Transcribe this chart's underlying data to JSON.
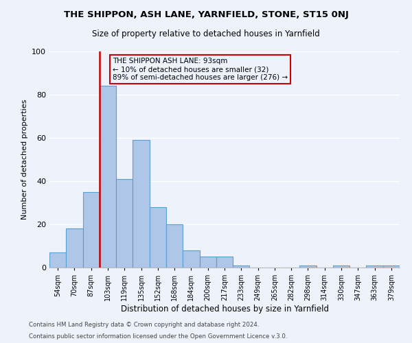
{
  "title": "THE SHIPPON, ASH LANE, YARNFIELD, STONE, ST15 0NJ",
  "subtitle": "Size of property relative to detached houses in Yarnfield",
  "xlabel": "Distribution of detached houses by size in Yarnfield",
  "ylabel": "Number of detached properties",
  "bin_labels": [
    "54sqm",
    "70sqm",
    "87sqm",
    "103sqm",
    "119sqm",
    "135sqm",
    "152sqm",
    "168sqm",
    "184sqm",
    "200sqm",
    "217sqm",
    "233sqm",
    "249sqm",
    "265sqm",
    "282sqm",
    "298sqm",
    "314sqm",
    "330sqm",
    "347sqm",
    "363sqm",
    "379sqm"
  ],
  "bar_heights": [
    7,
    18,
    35,
    84,
    41,
    59,
    28,
    20,
    8,
    5,
    5,
    1,
    0,
    0,
    0,
    1,
    0,
    1,
    0,
    1,
    1
  ],
  "bar_color": "#aec6e8",
  "bar_edge_color": "#5a9fd4",
  "vline_color": "#cc0000",
  "ylim": [
    0,
    100
  ],
  "annotation_title": "THE SHIPPON ASH LANE: 93sqm",
  "annotation_line1": "← 10% of detached houses are smaller (32)",
  "annotation_line2": "89% of semi-detached houses are larger (276) →",
  "annotation_box_edge": "#cc0000",
  "footer_line1": "Contains HM Land Registry data © Crown copyright and database right 2024.",
  "footer_line2": "Contains public sector information licensed under the Open Government Licence v.3.0.",
  "background_color": "#eef2fb",
  "grid_color": "#ffffff"
}
